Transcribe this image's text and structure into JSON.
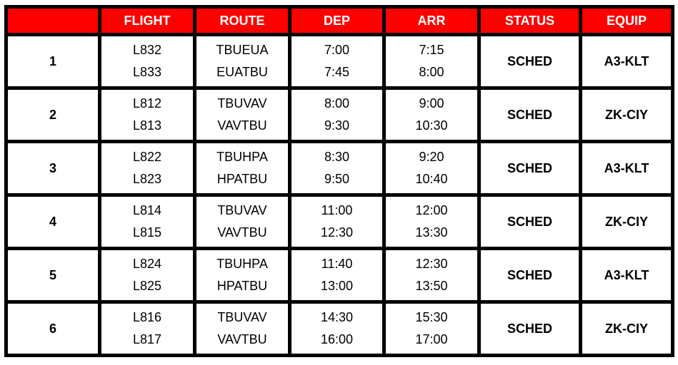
{
  "header": [
    "",
    "FLIGHT",
    "ROUTE",
    "DEP",
    "ARR",
    "STATUS",
    "EQUIP"
  ],
  "rows": [
    {
      "num": "1",
      "flights": [
        "L832",
        "L833"
      ],
      "routes": [
        "TBUEUA",
        "EUATBU"
      ],
      "dep": [
        "7:00",
        "7:45"
      ],
      "arr": [
        "7:15",
        "8:00"
      ],
      "status": "SCHED",
      "equip": "A3-KLT"
    },
    {
      "num": "2",
      "flights": [
        "L812",
        "L813"
      ],
      "routes": [
        "TBUVAV",
        "VAVTBU"
      ],
      "dep": [
        "8:00",
        "9:30"
      ],
      "arr": [
        "9:00",
        "10:30"
      ],
      "status": "SCHED",
      "equip": "ZK-CIY"
    },
    {
      "num": "3",
      "flights": [
        "L822",
        "L823"
      ],
      "routes": [
        "TBUHPA",
        "HPATBU"
      ],
      "dep": [
        "8:30",
        "9:50"
      ],
      "arr": [
        "9:20",
        "10:40"
      ],
      "status": "SCHED",
      "equip": "A3-KLT"
    },
    {
      "num": "4",
      "flights": [
        "L814",
        "L815"
      ],
      "routes": [
        "TBUVAV",
        "VAVTBU"
      ],
      "dep": [
        "11:00",
        "12:30"
      ],
      "arr": [
        "12:00",
        "13:30"
      ],
      "status": "SCHED",
      "equip": "ZK-CIY"
    },
    {
      "num": "5",
      "flights": [
        "L824",
        "L825"
      ],
      "routes": [
        "TBUHPA",
        "HPATBU"
      ],
      "dep": [
        "11:40",
        "13:00"
      ],
      "arr": [
        "12:30",
        "13:50"
      ],
      "status": "SCHED",
      "equip": "A3-KLT"
    },
    {
      "num": "6",
      "flights": [
        "L816",
        "L817"
      ],
      "routes": [
        "TBUVAV",
        "VAVTBU"
      ],
      "dep": [
        "14:30",
        "16:00"
      ],
      "arr": [
        "15:30",
        "17:00"
      ],
      "status": "SCHED",
      "equip": "ZK-CIY"
    }
  ],
  "colors": {
    "header_bg": "#ff0000",
    "header_text": "#ffffff",
    "border": "#000000"
  }
}
